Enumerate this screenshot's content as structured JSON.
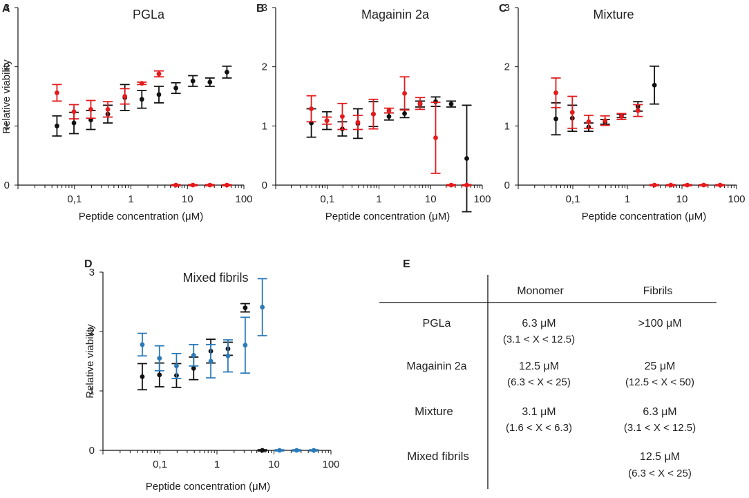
{
  "colors": {
    "black": "#111111",
    "red": "#e41a1c",
    "blue": "#2a7ab9"
  },
  "chart_data": [
    {
      "panel": "A",
      "type": "scatter",
      "title": "PGLa",
      "xlabel": "Peptide concentration (μM)",
      "ylabel": "Relative viability",
      "xscale": "log",
      "xlim": [
        0.01,
        100
      ],
      "ylim": [
        0,
        3
      ],
      "xticks": [
        {
          "value": 0.1,
          "label": "0,1"
        },
        {
          "value": 1,
          "label": "1"
        },
        {
          "value": 10,
          "label": "10"
        },
        {
          "value": 100,
          "label": "100"
        }
      ],
      "yticks": [
        {
          "value": 0,
          "label": "0"
        },
        {
          "value": 1,
          "label": "1"
        },
        {
          "value": 2,
          "label": "2"
        },
        {
          "value": 3,
          "label": "3"
        }
      ],
      "series": [
        {
          "name": "black",
          "color": "#111111",
          "points": [
            {
              "x": 0.049,
              "y": 1.0,
              "err": 0.17
            },
            {
              "x": 0.098,
              "y": 1.05,
              "err": 0.18
            },
            {
              "x": 0.195,
              "y": 1.1,
              "err": 0.16
            },
            {
              "x": 0.39,
              "y": 1.2,
              "err": 0.15
            },
            {
              "x": 0.78,
              "y": 1.48,
              "err": 0.22
            },
            {
              "x": 1.56,
              "y": 1.45,
              "err": 0.15
            },
            {
              "x": 3.13,
              "y": 1.53,
              "err": 0.14
            },
            {
              "x": 6.25,
              "y": 1.64,
              "err": 0.09
            },
            {
              "x": 12.5,
              "y": 1.76,
              "err": 0.09
            },
            {
              "x": 25,
              "y": 1.74,
              "err": 0.07
            },
            {
              "x": 50,
              "y": 1.91,
              "err": 0.1
            }
          ]
        },
        {
          "name": "red",
          "color": "#e41a1c",
          "points": [
            {
              "x": 0.049,
              "y": 1.56,
              "err": 0.14
            },
            {
              "x": 0.098,
              "y": 1.24,
              "err": 0.12
            },
            {
              "x": 0.195,
              "y": 1.28,
              "err": 0.15
            },
            {
              "x": 0.39,
              "y": 1.28,
              "err": 0.13
            },
            {
              "x": 0.78,
              "y": 1.5,
              "err": 0.13
            },
            {
              "x": 1.56,
              "y": 1.72,
              "err": 0.02
            },
            {
              "x": 3.13,
              "y": 1.88,
              "err": 0.05
            },
            {
              "x": 6.25,
              "y": 0.0,
              "err": 0.01
            },
            {
              "x": 12.5,
              "y": 0.0,
              "err": 0.01
            },
            {
              "x": 25,
              "y": 0.0,
              "err": 0.01
            },
            {
              "x": 50,
              "y": 0.0,
              "err": 0.01
            }
          ]
        }
      ]
    },
    {
      "panel": "B",
      "type": "scatter",
      "title": "Magainin 2a",
      "xlabel": "Peptide concentration (μM)",
      "ylabel": "",
      "xscale": "log",
      "xlim": [
        0.01,
        100
      ],
      "ylim": [
        0,
        3
      ],
      "xticks": [
        {
          "value": 0.1,
          "label": "0,1"
        },
        {
          "value": 1,
          "label": "1"
        },
        {
          "value": 10,
          "label": "10"
        },
        {
          "value": 100,
          "label": "100"
        }
      ],
      "yticks": [
        {
          "value": 0,
          "label": "0"
        },
        {
          "value": 1,
          "label": "1"
        },
        {
          "value": 2,
          "label": "2"
        },
        {
          "value": 3,
          "label": "3"
        }
      ],
      "series": [
        {
          "name": "black",
          "color": "#111111",
          "points": [
            {
              "x": 0.049,
              "y": 1.05,
              "err": 0.24
            },
            {
              "x": 0.098,
              "y": 1.09,
              "err": 0.15
            },
            {
              "x": 0.195,
              "y": 0.95,
              "err": 0.12
            },
            {
              "x": 0.39,
              "y": 1.04,
              "err": 0.25
            },
            {
              "x": 0.78,
              "y": 1.2,
              "err": 0.21
            },
            {
              "x": 1.56,
              "y": 1.16,
              "err": 0.06
            },
            {
              "x": 3.13,
              "y": 1.21,
              "err": 0.07
            },
            {
              "x": 6.25,
              "y": 1.37,
              "err": 0.05
            },
            {
              "x": 12.5,
              "y": 1.41,
              "err": 0.08
            },
            {
              "x": 25,
              "y": 1.37,
              "err": 0.05
            },
            {
              "x": 50,
              "y": 0.45,
              "err": 0.9
            }
          ]
        },
        {
          "name": "red",
          "color": "#e41a1c",
          "points": [
            {
              "x": 0.049,
              "y": 1.29,
              "err": 0.22
            },
            {
              "x": 0.098,
              "y": 1.09,
              "err": 0.06
            },
            {
              "x": 0.195,
              "y": 1.16,
              "err": 0.22
            },
            {
              "x": 0.39,
              "y": 1.06,
              "err": 0.12
            },
            {
              "x": 0.78,
              "y": 1.2,
              "err": 0.25
            },
            {
              "x": 1.56,
              "y": 1.26,
              "err": 0.04
            },
            {
              "x": 3.13,
              "y": 1.55,
              "err": 0.28
            },
            {
              "x": 6.25,
              "y": 1.38,
              "err": 0.1
            },
            {
              "x": 12.5,
              "y": 0.8,
              "err": 0.6
            },
            {
              "x": 25,
              "y": 0.0,
              "err": 0.01
            },
            {
              "x": 50,
              "y": 0.0,
              "err": 0.01
            }
          ]
        }
      ]
    },
    {
      "panel": "C",
      "type": "scatter",
      "title": "Mixture",
      "xlabel": "Peptide concentration (μM)",
      "ylabel": "",
      "xscale": "log",
      "xlim": [
        0.01,
        100
      ],
      "ylim": [
        0,
        3
      ],
      "xticks": [
        {
          "value": 0.1,
          "label": "0,1"
        },
        {
          "value": 1,
          "label": "1"
        },
        {
          "value": 10,
          "label": "10"
        },
        {
          "value": 100,
          "label": "100"
        }
      ],
      "yticks": [
        {
          "value": 0,
          "label": "0"
        },
        {
          "value": 1,
          "label": "1"
        },
        {
          "value": 2,
          "label": "2"
        },
        {
          "value": 3,
          "label": "3"
        }
      ],
      "series": [
        {
          "name": "black",
          "color": "#111111",
          "points": [
            {
              "x": 0.049,
              "y": 1.12,
              "err": 0.27
            },
            {
              "x": 0.098,
              "y": 1.13,
              "err": 0.22
            },
            {
              "x": 0.195,
              "y": 0.98,
              "err": 0.07
            },
            {
              "x": 0.39,
              "y": 1.07,
              "err": 0.04
            },
            {
              "x": 0.78,
              "y": 1.17,
              "err": 0.03
            },
            {
              "x": 1.56,
              "y": 1.33,
              "err": 0.08
            },
            {
              "x": 3.13,
              "y": 1.69,
              "err": 0.32
            }
          ]
        },
        {
          "name": "red",
          "color": "#e41a1c",
          "points": [
            {
              "x": 0.049,
              "y": 1.56,
              "err": 0.25
            },
            {
              "x": 0.098,
              "y": 1.23,
              "err": 0.27
            },
            {
              "x": 0.195,
              "y": 1.07,
              "err": 0.11
            },
            {
              "x": 0.39,
              "y": 1.09,
              "err": 0.08
            },
            {
              "x": 0.78,
              "y": 1.16,
              "err": 0.05
            },
            {
              "x": 1.56,
              "y": 1.26,
              "err": 0.1
            },
            {
              "x": 3.13,
              "y": 0.0,
              "err": 0.01
            },
            {
              "x": 6.25,
              "y": 0.0,
              "err": 0.01
            },
            {
              "x": 12.5,
              "y": 0.0,
              "err": 0.01
            },
            {
              "x": 25,
              "y": 0.0,
              "err": 0.01
            },
            {
              "x": 50,
              "y": 0.0,
              "err": 0.01
            }
          ]
        }
      ]
    },
    {
      "panel": "D",
      "type": "scatter",
      "title": "Mixed fibrils",
      "xlabel": "Peptide concentration (μM)",
      "ylabel": "Relative viability",
      "xscale": "log",
      "xlim": [
        0.01,
        100
      ],
      "ylim": [
        0,
        3
      ],
      "xticks": [
        {
          "value": 0.1,
          "label": "0,1"
        },
        {
          "value": 1,
          "label": "1"
        },
        {
          "value": 10,
          "label": "10"
        },
        {
          "value": 100,
          "label": "100"
        }
      ],
      "yticks": [
        {
          "value": 0,
          "label": "0"
        },
        {
          "value": 1,
          "label": "1"
        },
        {
          "value": 2,
          "label": "2"
        },
        {
          "value": 3,
          "label": "3"
        }
      ],
      "series": [
        {
          "name": "black",
          "color": "#111111",
          "points": [
            {
              "x": 0.049,
              "y": 1.24,
              "err": 0.22
            },
            {
              "x": 0.098,
              "y": 1.27,
              "err": 0.2
            },
            {
              "x": 0.195,
              "y": 1.26,
              "err": 0.2
            },
            {
              "x": 0.39,
              "y": 1.38,
              "err": 0.19
            },
            {
              "x": 0.78,
              "y": 1.67,
              "err": 0.2
            },
            {
              "x": 1.56,
              "y": 1.71,
              "err": 0.11
            },
            {
              "x": 3.13,
              "y": 2.4,
              "err": 0.07
            },
            {
              "x": 6.25,
              "y": 0.0,
              "err": 0.01
            }
          ]
        },
        {
          "name": "blue",
          "color": "#2a7ab9",
          "points": [
            {
              "x": 0.049,
              "y": 1.78,
              "err": 0.19
            },
            {
              "x": 0.098,
              "y": 1.55,
              "err": 0.21
            },
            {
              "x": 0.195,
              "y": 1.42,
              "err": 0.21
            },
            {
              "x": 0.39,
              "y": 1.6,
              "err": 0.18
            },
            {
              "x": 0.78,
              "y": 1.5,
              "err": 0.28
            },
            {
              "x": 1.56,
              "y": 1.59,
              "err": 0.27
            },
            {
              "x": 3.13,
              "y": 1.77,
              "err": 0.47
            },
            {
              "x": 6.25,
              "y": 2.41,
              "err": 0.48
            },
            {
              "x": 12.5,
              "y": 0.0,
              "err": 0.01
            },
            {
              "x": 25,
              "y": 0.0,
              "err": 0.01
            },
            {
              "x": 50,
              "y": 0.0,
              "err": 0.01
            }
          ]
        }
      ]
    },
    {
      "panel": "E",
      "type": "table",
      "columns": [
        "",
        "Monomer",
        "Fibrils"
      ],
      "rows": [
        {
          "label": "PGLa",
          "monomer": "6.3 μM",
          "monomer_range": "(3.1 < X < 12.5)",
          "fibrils": ">100 μM",
          "fibrils_range": ""
        },
        {
          "label": "Magainin 2a",
          "monomer": "12.5 μM",
          "monomer_range": "(6.3 < X < 25)",
          "fibrils": "25 μM",
          "fibrils_range": "(12.5 < X < 50)"
        },
        {
          "label": "Mixture",
          "monomer": "3.1 μM",
          "monomer_range": "(1.6 < X < 6.3)",
          "fibrils": "6.3 μM",
          "fibrils_range": "(3.1 < X < 12.5)"
        },
        {
          "label": "Mixed fibrils",
          "monomer": "",
          "monomer_range": "",
          "fibrils": "12.5 μM",
          "fibrils_range": "(6.3 < X < 25)"
        }
      ]
    }
  ]
}
